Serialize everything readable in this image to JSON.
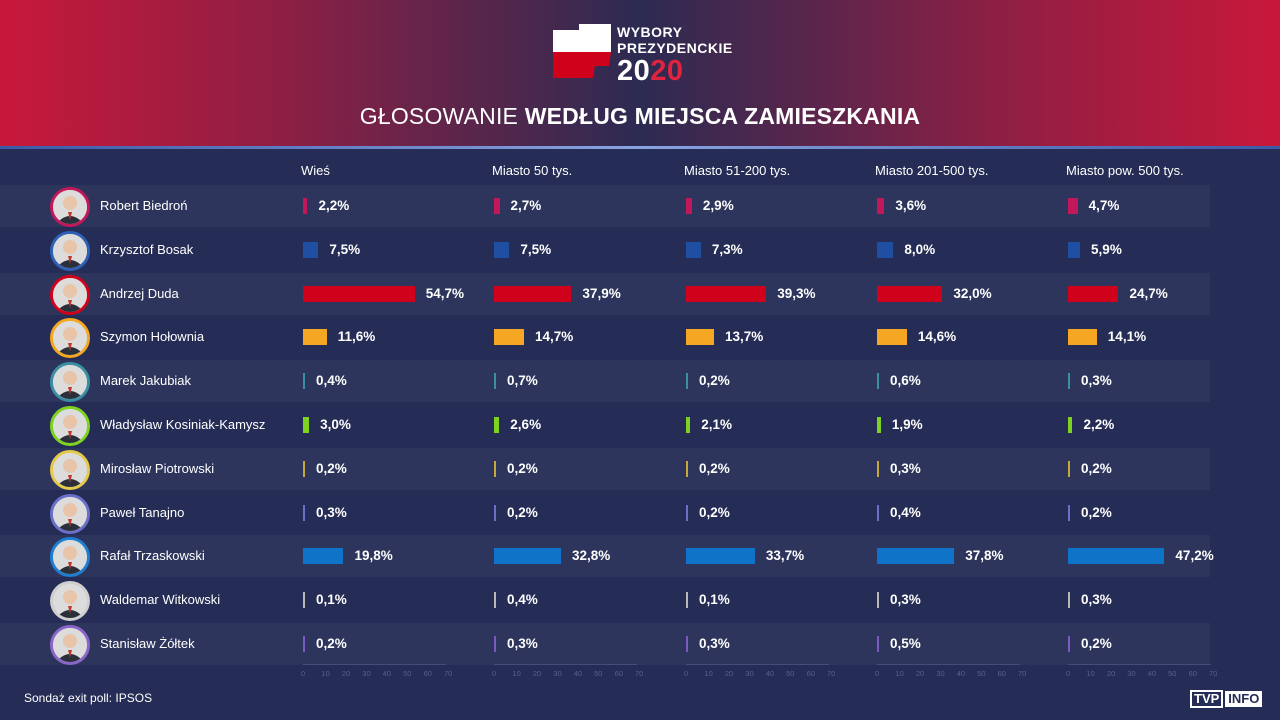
{
  "header": {
    "logo_line1": "WYBORY",
    "logo_line2": "PREZYDENCKIE",
    "logo_year_a": "20",
    "logo_year_b": "20",
    "title_light": "GŁOSOWANIE",
    "title_bold": "WEDŁUG MIEJSCA ZAMIESZKANIA"
  },
  "chart_data": {
    "type": "bar",
    "orientation": "horizontal",
    "xlim": [
      0,
      70
    ],
    "xticks": [
      "0",
      "10",
      "20",
      "30",
      "40",
      "50",
      "60",
      "70"
    ],
    "panels": [
      "Wieś",
      "Miasto 50 tys.",
      "Miasto 51-200 tys.",
      "Miasto 201-500 tys.",
      "Miasto pow. 500 tys."
    ],
    "candidates": [
      {
        "name": "Robert Biedroń",
        "color": "#c2185b",
        "ring": "#c2185b",
        "values": [
          2.2,
          2.7,
          2.9,
          3.6,
          4.7
        ],
        "labels": [
          "2,2%",
          "2,7%",
          "2,9%",
          "3,6%",
          "4,7%"
        ]
      },
      {
        "name": "Krzysztof Bosak",
        "color": "#1f4fa3",
        "ring": "#2f60b5",
        "values": [
          7.5,
          7.5,
          7.3,
          8.0,
          5.9
        ],
        "labels": [
          "7,5%",
          "7,5%",
          "7,3%",
          "8,0%",
          "5,9%"
        ]
      },
      {
        "name": "Andrzej Duda",
        "color": "#d0021b",
        "ring": "#d0021b",
        "values": [
          54.7,
          37.9,
          39.3,
          32.0,
          24.7
        ],
        "labels": [
          "54,7%",
          "37,9%",
          "39,3%",
          "32,0%",
          "24,7%"
        ]
      },
      {
        "name": "Szymon Hołownia",
        "color": "#f5a623",
        "ring": "#f5a623",
        "values": [
          11.6,
          14.7,
          13.7,
          14.6,
          14.1
        ],
        "labels": [
          "11,6%",
          "14,7%",
          "13,7%",
          "14,6%",
          "14,1%"
        ]
      },
      {
        "name": "Marek Jakubiak",
        "color": "#3a8fa3",
        "ring": "#3a8fa3",
        "values": [
          0.4,
          0.7,
          0.2,
          0.6,
          0.3
        ],
        "labels": [
          "0,4%",
          "0,7%",
          "0,2%",
          "0,6%",
          "0,3%"
        ]
      },
      {
        "name": "Władysław Kosiniak-Kamysz",
        "color": "#7ed321",
        "ring": "#7ed321",
        "values": [
          3.0,
          2.6,
          2.1,
          1.9,
          2.2
        ],
        "labels": [
          "3,0%",
          "2,6%",
          "2,1%",
          "1,9%",
          "2,2%"
        ]
      },
      {
        "name": "Mirosław Piotrowski",
        "color": "#c8a73a",
        "ring": "#e5c94a",
        "values": [
          0.2,
          0.2,
          0.2,
          0.3,
          0.2
        ],
        "labels": [
          "0,2%",
          "0,2%",
          "0,2%",
          "0,3%",
          "0,2%"
        ]
      },
      {
        "name": "Paweł Tanajno",
        "color": "#6a6fc8",
        "ring": "#6a6fc8",
        "values": [
          0.3,
          0.2,
          0.2,
          0.4,
          0.2
        ],
        "labels": [
          "0,3%",
          "0,2%",
          "0,2%",
          "0,4%",
          "0,2%"
        ]
      },
      {
        "name": "Rafał Trzaskowski",
        "color": "#0f73c7",
        "ring": "#1e7fd0",
        "values": [
          19.8,
          32.8,
          33.7,
          37.8,
          47.2
        ],
        "labels": [
          "19,8%",
          "32,8%",
          "33,7%",
          "37,8%",
          "47,2%"
        ]
      },
      {
        "name": "Waldemar Witkowski",
        "color": "#b8b8b8",
        "ring": "#cfcfcf",
        "values": [
          0.1,
          0.4,
          0.1,
          0.3,
          0.3
        ],
        "labels": [
          "0,1%",
          "0,4%",
          "0,1%",
          "0,3%",
          "0,3%"
        ]
      },
      {
        "name": "Stanisław Żółtek",
        "color": "#7a5bc4",
        "ring": "#8a66c8",
        "values": [
          0.2,
          0.3,
          0.3,
          0.5,
          0.2
        ],
        "labels": [
          "0,2%",
          "0,3%",
          "0,3%",
          "0,5%",
          "0,2%"
        ]
      }
    ]
  },
  "footer": {
    "source": "Sondaż exit poll: IPSOS",
    "brand_a": "TVP",
    "brand_b": "INFO"
  }
}
